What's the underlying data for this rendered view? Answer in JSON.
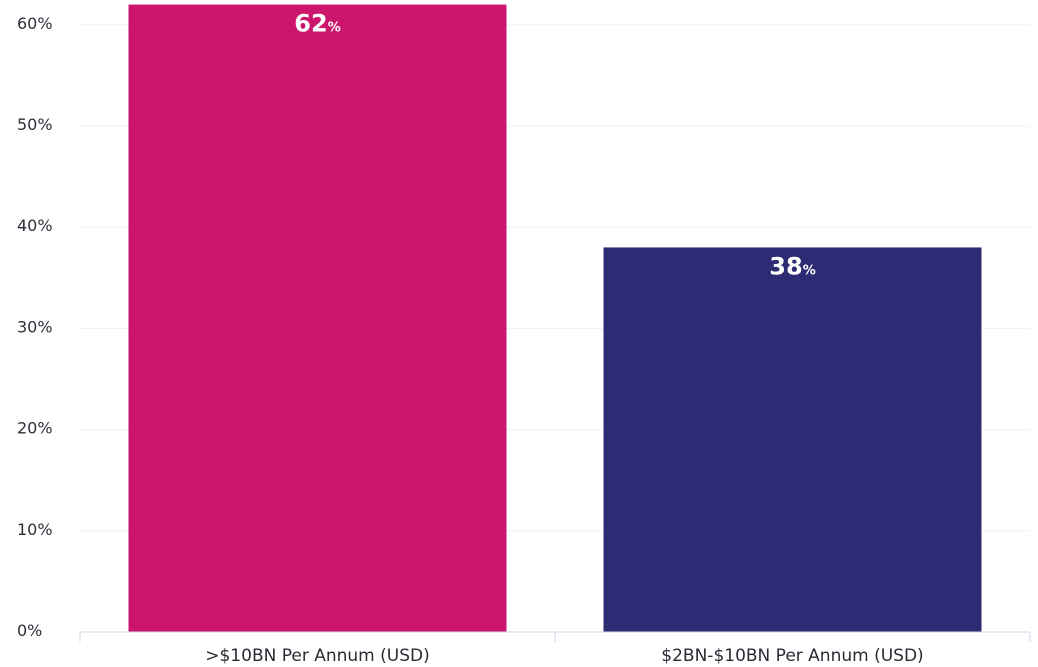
{
  "chart_data": {
    "type": "bar",
    "title": "",
    "xlabel": "",
    "ylabel": "",
    "categories": [
      ">$10BN Per Annum (USD)",
      "$2BN-$10BN Per Annum (USD)"
    ],
    "values": [
      62,
      38
    ],
    "data_labels": [
      {
        "number": "62",
        "unit": "%"
      },
      {
        "number": "38",
        "unit": "%"
      }
    ],
    "bar_colors": [
      "#cc166d",
      "#2d2b73"
    ],
    "ylim": [
      0,
      60
    ],
    "yticks": [
      0,
      10,
      20,
      30,
      40,
      50,
      60
    ],
    "ytick_labels": [
      "0%",
      "10%",
      "20%",
      "30%",
      "40%",
      "50%",
      "60%"
    ],
    "grid": true,
    "legend": "none"
  }
}
